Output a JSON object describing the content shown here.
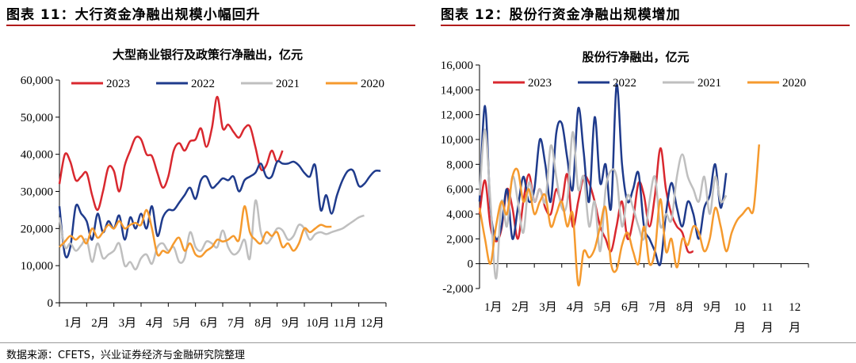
{
  "left_figure": {
    "heading": "图表 11：大行资金净融出规模小幅回升"
  },
  "right_figure": {
    "heading": "图表 12：股份行资金净融出规模增加"
  },
  "source_note": "数据来源：CFETS，兴业证券经济与金融研究院整理",
  "chart_data": [
    {
      "type": "line",
      "title": "大型商业银行及政策行净融出，亿元",
      "xlabel": "",
      "ylabel": "",
      "ylim": [
        0,
        60000
      ],
      "yticks": [
        0,
        10000,
        20000,
        30000,
        40000,
        50000,
        60000
      ],
      "ytick_labels": [
        "0",
        "10,000",
        "20,000",
        "30,000",
        "40,000",
        "50,000",
        "60,000"
      ],
      "xlim": [
        0,
        12
      ],
      "xtick_labels": [
        "1月",
        "2月",
        "3月",
        "4月",
        "5月",
        "6月",
        "7月",
        "8月",
        "9月",
        "10月",
        "11月",
        "12月"
      ],
      "legend_position": "top",
      "series": [
        {
          "name": "2023",
          "color": "#d9282f",
          "width": 2.5,
          "x": [
            0.0,
            0.2,
            0.4,
            0.6,
            0.8,
            1.0,
            1.2,
            1.4,
            1.6,
            1.8,
            2.0,
            2.2,
            2.4,
            2.6,
            2.8,
            3.0,
            3.2,
            3.4,
            3.6,
            3.8,
            4.0,
            4.2,
            4.4,
            4.6,
            4.8,
            5.0,
            5.2,
            5.4,
            5.6,
            5.8,
            6.0,
            6.2,
            6.4,
            6.6,
            6.8,
            7.0,
            7.2,
            7.4,
            7.6,
            7.8,
            8.0,
            8.2,
            8.4,
            8.6,
            8.8,
            9.0,
            9.2,
            9.4
          ],
          "y": [
            32000,
            40000,
            38000,
            33000,
            34000,
            35000,
            29000,
            25000,
            30000,
            36500,
            35500,
            30000,
            37000,
            41000,
            44500,
            44000,
            40000,
            39500,
            35000,
            31000,
            34000,
            41000,
            43000,
            41000,
            43500,
            44000,
            47000,
            42000,
            47000,
            55500,
            47000,
            48000,
            46000,
            44500,
            47000,
            47500,
            42000,
            36000,
            37000,
            41000,
            38000,
            41000,
            null,
            null,
            null,
            null,
            null,
            null
          ]
        },
        {
          "name": "2022",
          "color": "#1f3b8c",
          "width": 2.5,
          "x": [
            0.0,
            0.2,
            0.4,
            0.6,
            0.8,
            1.0,
            1.2,
            1.4,
            1.6,
            1.8,
            2.0,
            2.2,
            2.4,
            2.6,
            2.8,
            3.0,
            3.2,
            3.4,
            3.6,
            3.8,
            4.0,
            4.2,
            4.4,
            4.6,
            4.8,
            5.0,
            5.2,
            5.4,
            5.6,
            5.8,
            6.0,
            6.2,
            6.4,
            6.6,
            6.8,
            7.0,
            7.2,
            7.4,
            7.6,
            7.8,
            8.0,
            8.2,
            8.4,
            8.6,
            8.8,
            9.0,
            9.2,
            9.4,
            9.6,
            9.8,
            10.0,
            10.2,
            10.4,
            10.6,
            10.8,
            11.0,
            11.2,
            11.4,
            11.6,
            11.8
          ],
          "y": [
            26000,
            13000,
            15000,
            26000,
            24000,
            22000,
            17000,
            24000,
            19000,
            22000,
            20000,
            23500,
            17000,
            23000,
            20000,
            24000,
            20000,
            26000,
            18000,
            23000,
            25000,
            25000,
            27000,
            29000,
            31000,
            28000,
            33000,
            34000,
            31000,
            32000,
            33500,
            33000,
            34000,
            30000,
            33000,
            34000,
            35000,
            37500,
            34000,
            34000,
            38000,
            37500,
            37500,
            38000,
            37000,
            35000,
            34000,
            37000,
            25000,
            29000,
            24000,
            29000,
            33000,
            35500,
            35500,
            31500,
            32000,
            34000,
            35500,
            35500
          ]
        },
        {
          "name": "2021",
          "color": "#bfbfbf",
          "width": 2.5,
          "x": [
            0.0,
            0.2,
            0.4,
            0.6,
            0.8,
            1.0,
            1.2,
            1.4,
            1.6,
            1.8,
            2.0,
            2.2,
            2.4,
            2.6,
            2.8,
            3.0,
            3.2,
            3.4,
            3.6,
            3.8,
            4.0,
            4.2,
            4.4,
            4.6,
            4.8,
            5.0,
            5.2,
            5.4,
            5.6,
            5.8,
            6.0,
            6.2,
            6.4,
            6.6,
            6.8,
            7.0,
            7.2,
            7.4,
            7.6,
            7.8,
            8.0,
            8.2,
            8.4,
            8.6,
            8.8,
            9.0,
            9.2,
            9.4,
            9.6,
            9.8,
            10.0,
            10.2,
            10.4,
            10.6,
            10.8,
            11.0,
            11.2,
            11.4,
            11.6,
            11.8
          ],
          "y": [
            23000,
            15000,
            16000,
            14000,
            15500,
            17000,
            11000,
            16000,
            12000,
            13000,
            14000,
            16000,
            10000,
            11000,
            9000,
            12000,
            13000,
            10500,
            15000,
            16000,
            14000,
            15000,
            11000,
            12000,
            19000,
            15000,
            14000,
            16500,
            16000,
            15000,
            19500,
            15000,
            13000,
            14000,
            17000,
            12000,
            27500,
            19000,
            16000,
            17500,
            20000,
            19500,
            17000,
            18000,
            21000,
            20000,
            17000,
            18500,
            19000,
            18500,
            19000,
            19500,
            20000,
            21000,
            22000,
            23000,
            23500,
            null,
            null,
            null
          ]
        },
        {
          "name": "2020",
          "color": "#f59a2e",
          "width": 2.5,
          "x": [
            0.0,
            0.2,
            0.4,
            0.6,
            0.8,
            1.0,
            1.2,
            1.4,
            1.6,
            1.8,
            2.0,
            2.2,
            2.4,
            2.6,
            2.8,
            3.0,
            3.2,
            3.4,
            3.6,
            3.8,
            4.0,
            4.2,
            4.4,
            4.6,
            4.8,
            5.0,
            5.2,
            5.4,
            5.6,
            5.8,
            6.0,
            6.2,
            6.4,
            6.6,
            6.8,
            7.0,
            7.2,
            7.4,
            7.6,
            7.8,
            8.0,
            8.2,
            8.4,
            8.6,
            8.8,
            9.0,
            9.2,
            9.4,
            9.6,
            9.8,
            10.0,
            10.2,
            10.4,
            10.6,
            10.8,
            11.0,
            11.2,
            11.4,
            11.6,
            11.8
          ],
          "y": [
            15000,
            16500,
            18000,
            17000,
            18000,
            16000,
            20000,
            17500,
            19000,
            21000,
            20000,
            22000,
            20000,
            21000,
            21500,
            21000,
            25000,
            20000,
            13000,
            14000,
            13500,
            16000,
            17500,
            14000,
            16000,
            13000,
            12500,
            14000,
            15000,
            17000,
            16500,
            17000,
            18000,
            17000,
            26000,
            19000,
            17000,
            16000,
            19000,
            18000,
            19000,
            15000,
            16000,
            14000,
            16000,
            20000,
            19000,
            20000,
            21000,
            20500,
            20500,
            null,
            null,
            null,
            null,
            null,
            null,
            null,
            null,
            null
          ]
        }
      ]
    },
    {
      "type": "line",
      "title": "股份行净融出，亿元",
      "xlabel": "",
      "ylabel": "",
      "ylim": [
        -2000,
        16000
      ],
      "yticks": [
        -2000,
        0,
        2000,
        4000,
        6000,
        8000,
        10000,
        12000,
        14000,
        16000
      ],
      "ytick_labels": [
        "-2,000",
        "0",
        "2,000",
        "4,000",
        "6,000",
        "8,000",
        "10,000",
        "12,000",
        "14,000",
        "16,000"
      ],
      "xlim": [
        0,
        12
      ],
      "xtick_labels": [
        "1月",
        "2月",
        "3月",
        "4月",
        "5月",
        "6月",
        "7月",
        "8月",
        "9月",
        "10月",
        "11月",
        "12月"
      ],
      "legend_position": "top",
      "series": [
        {
          "name": "2023",
          "color": "#d9282f",
          "width": 2.5,
          "x": [
            0.0,
            0.2,
            0.4,
            0.6,
            0.8,
            1.0,
            1.2,
            1.4,
            1.6,
            1.8,
            2.0,
            2.2,
            2.4,
            2.6,
            2.8,
            3.0,
            3.2,
            3.4,
            3.6,
            3.8,
            4.0,
            4.2,
            4.4,
            4.6,
            4.8,
            5.0,
            5.2,
            5.4,
            5.6,
            5.8,
            6.0,
            6.2,
            6.4,
            6.6,
            6.8,
            7.0,
            7.2,
            7.4,
            7.6,
            7.8,
            8.0,
            8.2,
            8.4,
            8.6,
            8.8,
            9.0,
            9.2,
            9.4
          ],
          "y": [
            4000,
            6700,
            3000,
            1800,
            2800,
            6000,
            4500,
            2000,
            5000,
            7200,
            5000,
            6000,
            4500,
            4000,
            6000,
            5000,
            7200,
            3000,
            5000,
            7000,
            6500,
            5000,
            3000,
            2000,
            1000,
            3000,
            5000,
            2000,
            3500,
            6500,
            5500,
            3000,
            5500,
            9300,
            6000,
            4000,
            3000,
            2500,
            1000,
            1000,
            null,
            null,
            null,
            null,
            null,
            null,
            null,
            null
          ]
        },
        {
          "name": "2022",
          "color": "#1f3b8c",
          "width": 2.5,
          "x": [
            0.0,
            0.2,
            0.4,
            0.6,
            0.8,
            1.0,
            1.2,
            1.4,
            1.6,
            1.8,
            2.0,
            2.2,
            2.4,
            2.6,
            2.8,
            3.0,
            3.2,
            3.4,
            3.6,
            3.8,
            4.0,
            4.2,
            4.4,
            4.6,
            4.8,
            5.0,
            5.2,
            5.4,
            5.6,
            5.8,
            6.0,
            6.2,
            6.4,
            6.6,
            6.8,
            7.0,
            7.2,
            7.4,
            7.6,
            7.8,
            8.0,
            8.2,
            8.4,
            8.6,
            8.8,
            9.0,
            9.2,
            9.4,
            9.6,
            9.8,
            10.0,
            10.2,
            10.4,
            10.6,
            10.8,
            11.0,
            11.2,
            11.4,
            11.6,
            11.8
          ],
          "y": [
            5000,
            12700,
            4500,
            2000,
            3000,
            6000,
            2000,
            4500,
            7000,
            5000,
            6000,
            10000,
            8000,
            5000,
            10500,
            11300,
            8500,
            6000,
            12500,
            9000,
            5000,
            11800,
            6500,
            8000,
            4500,
            14400,
            8000,
            5000,
            6000,
            7300,
            3000,
            2000,
            1000,
            0,
            4000,
            6500,
            4500,
            3000,
            5000,
            4000,
            2000,
            4500,
            5500,
            8000,
            4500,
            7300,
            null,
            null,
            null,
            null,
            null,
            null,
            null,
            null,
            null,
            null,
            null,
            null,
            null,
            null
          ]
        },
        {
          "name": "2021",
          "color": "#bfbfbf",
          "width": 2.5,
          "x": [
            0.0,
            0.2,
            0.4,
            0.6,
            0.8,
            1.0,
            1.2,
            1.4,
            1.6,
            1.8,
            2.0,
            2.2,
            2.4,
            2.6,
            2.8,
            3.0,
            3.2,
            3.4,
            3.6,
            3.8,
            4.0,
            4.2,
            4.4,
            4.6,
            4.8,
            5.0,
            5.2,
            5.4,
            5.6,
            5.8,
            6.0,
            6.2,
            6.4,
            6.6,
            6.8,
            7.0,
            7.2,
            7.4,
            7.6,
            7.8,
            8.0,
            8.2,
            8.4,
            8.6,
            8.8,
            9.0,
            9.2,
            9.4,
            9.6,
            9.8,
            10.0,
            10.2,
            10.4,
            10.6,
            10.8,
            11.0,
            11.2,
            11.4,
            11.6,
            11.8
          ],
          "y": [
            5500,
            10800,
            5000,
            -1200,
            5000,
            3000,
            7000,
            5000,
            2500,
            6500,
            5000,
            6000,
            5000,
            9500,
            7000,
            4500,
            5000,
            10600,
            6000,
            7000,
            3000,
            5000,
            1000,
            6000,
            7500,
            7000,
            3000,
            5500,
            4500,
            3000,
            2000,
            5000,
            7000,
            3000,
            4000,
            3500,
            7000,
            8800,
            7000,
            6000,
            5000,
            7000,
            4000,
            7000,
            5000,
            5500,
            null,
            null,
            null,
            null,
            null,
            null,
            null,
            null,
            null,
            null,
            null,
            null,
            null,
            null
          ]
        },
        {
          "name": "2020",
          "color": "#f59a2e",
          "width": 2.5,
          "x": [
            0.0,
            0.2,
            0.4,
            0.6,
            0.8,
            1.0,
            1.2,
            1.4,
            1.6,
            1.8,
            2.0,
            2.2,
            2.4,
            2.6,
            2.8,
            3.0,
            3.2,
            3.4,
            3.6,
            3.8,
            4.0,
            4.2,
            4.4,
            4.6,
            4.8,
            5.0,
            5.2,
            5.4,
            5.6,
            5.8,
            6.0,
            6.2,
            6.4,
            6.6,
            6.8,
            7.0,
            7.2,
            7.4,
            7.6,
            7.8,
            8.0,
            8.2,
            8.4,
            8.6,
            8.8,
            9.0,
            9.2,
            9.4,
            9.6,
            9.8,
            10.0,
            10.2,
            10.4,
            10.6,
            10.8,
            11.0,
            11.2,
            11.4,
            11.6,
            11.8
          ],
          "y": [
            4500,
            2000,
            0,
            3000,
            5000,
            4000,
            7000,
            7500,
            5000,
            6000,
            4000,
            5000,
            5500,
            3000,
            4000,
            5000,
            3000,
            4000,
            -1700,
            1000,
            500,
            1200,
            3000,
            4500,
            0,
            -500,
            1500,
            2500,
            1000,
            0,
            3000,
            0,
            1000,
            5200,
            1000,
            2000,
            -300,
            2000,
            1500,
            3000,
            2500,
            1000,
            2000,
            4500,
            3000,
            1000,
            2500,
            3500,
            4000,
            4500,
            4400,
            9600,
            null,
            null,
            null,
            null,
            null,
            null,
            null,
            null
          ]
        }
      ]
    }
  ]
}
